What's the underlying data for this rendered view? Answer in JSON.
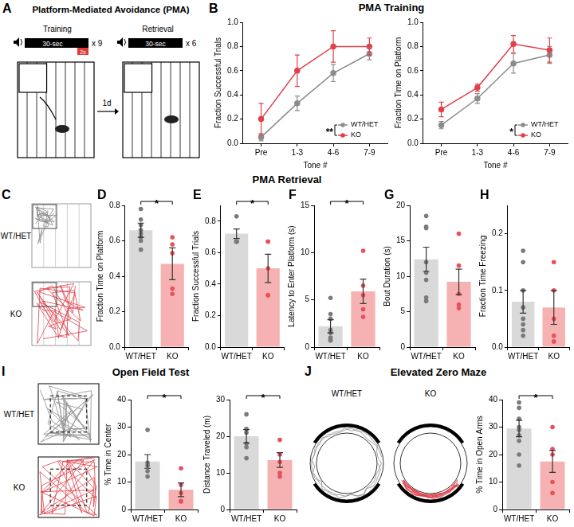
{
  "panel_A": {
    "letter": "A",
    "title": "Platform-Mediated Avoidance (PMA)",
    "training": {
      "label": "Training",
      "tone": "30-sec",
      "shock": "2s",
      "repeats": "x 9"
    },
    "retrieval": {
      "label": "Retrieval",
      "tone": "30-sec",
      "repeats": "x 6"
    },
    "interval": "1d"
  },
  "section_titles": {
    "training": "PMA Training",
    "retrieval": "PMA Retrieval",
    "open_field": "Open Field Test",
    "zero_maze": "Elevated Zero Maze"
  },
  "panel_C": {
    "letter": "C",
    "groups": [
      "WT/HET",
      "KO"
    ]
  },
  "panel_I_tracks": {
    "letter": "I",
    "groups": [
      "WT/HET",
      "KO"
    ]
  },
  "panel_J_tracks": {
    "letter": "J",
    "groups": [
      "WT/HET",
      "KO"
    ]
  },
  "chart_data": [
    {
      "panel": "B",
      "type": "line",
      "categories": [
        "Pre",
        "1-3",
        "4-6",
        "7-9"
      ],
      "x_label": "Tone #",
      "y_label": "Fraction Successful Trials",
      "ylim": [
        0,
        1
      ],
      "yticks": [
        {
          "value": 0,
          "label": "0.0"
        },
        0.2,
        0.4,
        0.6,
        0.8,
        {
          "value": 1,
          "label": "1.0"
        }
      ],
      "grid": false,
      "legend": "lower right",
      "significance": "**",
      "series": [
        {
          "name": "WT/HET",
          "color": "#8c8c8c",
          "marker": "circle",
          "values": [
            0.05,
            0.33,
            0.58,
            0.74
          ],
          "errors": [
            0.03,
            0.06,
            0.07,
            0.05
          ]
        },
        {
          "name": "KO",
          "color": "#e0404a",
          "marker": "circle",
          "values": [
            0.2,
            0.6,
            0.8,
            0.8
          ],
          "errors": [
            0.13,
            0.13,
            0.13,
            0.07
          ]
        }
      ]
    },
    {
      "type": "line",
      "categories": [
        "Pre",
        "1-3",
        "4-6",
        "7-9"
      ],
      "x_label": "Tone #",
      "y_label": "Fraction Time on Platform",
      "ylim": [
        0,
        1
      ],
      "yticks": [
        {
          "value": 0,
          "label": "0.0"
        },
        0.2,
        0.4,
        0.6,
        0.8,
        {
          "value": 1,
          "label": "1.0"
        }
      ],
      "grid": false,
      "legend": "lower right",
      "significance": "*",
      "series": [
        {
          "name": "WT/HET",
          "color": "#8c8c8c",
          "marker": "circle",
          "values": [
            0.15,
            0.37,
            0.66,
            0.73
          ],
          "errors": [
            0.03,
            0.04,
            0.08,
            0.07
          ]
        },
        {
          "name": "KO",
          "color": "#e0404a",
          "marker": "circle",
          "values": [
            0.28,
            0.46,
            0.82,
            0.77
          ],
          "errors": [
            0.06,
            0.03,
            0.07,
            0.1
          ]
        }
      ]
    },
    {
      "panel": "D",
      "type": "bar",
      "categories": [
        "WT/HET",
        "KO"
      ],
      "y_label": "Fraction Time on Platform",
      "ylim": [
        0,
        0.8
      ],
      "yticks": [
        {
          "value": 0,
          "label": "0.0"
        },
        0.2,
        0.4,
        0.6,
        0.8
      ],
      "grid": false,
      "colors": [
        "#d9d9d9",
        "#f6b2b2"
      ],
      "values": [
        0.66,
        0.47
      ],
      "errors": [
        0.04,
        0.09
      ],
      "significance": "*",
      "points": [
        [
          0.78,
          0.72,
          0.69,
          0.66,
          0.64,
          0.62,
          0.6,
          0.55
        ],
        [
          0.62,
          0.58,
          0.53,
          0.33,
          0.3
        ]
      ]
    },
    {
      "panel": "E",
      "type": "bar",
      "categories": [
        "WT/HET",
        "KO"
      ],
      "y_label": "Fraction Successful Trials",
      "ylim": [
        0,
        0.9
      ],
      "yticks": [
        {
          "value": 0,
          "label": "0.0"
        },
        0.2,
        0.4,
        0.6,
        0.8
      ],
      "grid": false,
      "colors": [
        "#d9d9d9",
        "#f6b2b2"
      ],
      "values": [
        0.72,
        0.5
      ],
      "errors": [
        0.03,
        0.09
      ],
      "significance": "*",
      "points": [
        [
          0.83,
          0.67,
          0.67,
          0.67,
          0.67,
          0.67,
          0.67,
          0.67
        ],
        [
          0.67,
          0.67,
          0.5,
          0.33,
          0.33
        ]
      ]
    },
    {
      "panel": "F",
      "type": "bar",
      "categories": [
        "WT/HET",
        "KO"
      ],
      "y_label": "Latency to Enter Platform (s)",
      "ylim": [
        0,
        15
      ],
      "yticks": [
        0,
        5,
        10,
        15
      ],
      "grid": false,
      "colors": [
        "#d9d9d9",
        "#f6b2b2"
      ],
      "values": [
        2.2,
        5.9
      ],
      "errors": [
        0.7,
        1.3
      ],
      "significance": "*",
      "points": [
        [
          5.2,
          3.5,
          3.0,
          1.8,
          1.5,
          1.0,
          0.8,
          0.7
        ],
        [
          10.2,
          6.5,
          5.5,
          4.0,
          3.2
        ]
      ]
    },
    {
      "panel": "G",
      "type": "bar",
      "categories": [
        "WT/HET",
        "KO"
      ],
      "y_label": "Bout Duration (s)",
      "ylim": [
        0,
        20
      ],
      "yticks": [
        0,
        5,
        10,
        15,
        20
      ],
      "grid": false,
      "colors": [
        "#d9d9d9",
        "#f6b2b2"
      ],
      "values": [
        12.4,
        9.2
      ],
      "errors": [
        1.7,
        1.8
      ],
      "points": [
        [
          18.5,
          17.0,
          16.8,
          12.0,
          10.5,
          9.5,
          7.0,
          6.5
        ],
        [
          16.0,
          11.5,
          7.5,
          6.0,
          5.5
        ]
      ]
    },
    {
      "panel": "H",
      "type": "bar",
      "categories": [
        "WT/HET",
        "KO"
      ],
      "y_label": "Fraction Time Freezing",
      "ylim": [
        0,
        0.25
      ],
      "yticks": [
        {
          "value": 0,
          "label": "0.0"
        },
        0.1,
        0.2
      ],
      "grid": false,
      "colors": [
        "#d9d9d9",
        "#f6b2b2"
      ],
      "values": [
        0.08,
        0.07
      ],
      "errors": [
        0.02,
        0.03
      ],
      "points": [
        [
          0.17,
          0.15,
          0.1,
          0.07,
          0.05,
          0.04,
          0.03,
          0.02
        ],
        [
          0.15,
          0.1,
          0.05,
          0.02,
          0.01
        ]
      ]
    },
    {
      "type": "bar",
      "categories": [
        "WT/HET",
        "KO"
      ],
      "y_label": "% Time in Center",
      "ylim": [
        0,
        40
      ],
      "yticks": [
        0,
        10,
        20,
        30,
        40
      ],
      "grid": false,
      "colors": [
        "#d9d9d9",
        "#f6b2b2"
      ],
      "values": [
        17.5,
        7.2
      ],
      "errors": [
        2.5,
        2.5
      ],
      "significance": "*",
      "points": [
        [
          29,
          17,
          16,
          14,
          12
        ],
        [
          15,
          9,
          6,
          3,
          3
        ]
      ]
    },
    {
      "type": "bar",
      "categories": [
        "WT/HET",
        "KO"
      ],
      "y_label": "Distance Traveled (m)",
      "ylim": [
        0,
        30
      ],
      "yticks": [
        0,
        10,
        20,
        30
      ],
      "grid": false,
      "colors": [
        "#d9d9d9",
        "#f6b2b2"
      ],
      "values": [
        20,
        13.5
      ],
      "errors": [
        1.8,
        2
      ],
      "significance": "*",
      "points": [
        [
          26,
          22,
          21,
          18,
          17,
          14
        ],
        [
          19,
          15,
          13,
          10,
          9
        ]
      ]
    },
    {
      "type": "bar",
      "categories": [
        "WT/HET",
        "KO"
      ],
      "y_label": "% Time in Open Arms",
      "ylim": [
        0,
        40
      ],
      "yticks": [
        0,
        10,
        20,
        30,
        40
      ],
      "grid": false,
      "colors": [
        "#d9d9d9",
        "#f6b2b2"
      ],
      "values": [
        29.5,
        17.5
      ],
      "errors": [
        3,
        4
      ],
      "significance": "*",
      "points": [
        [
          39,
          37,
          33,
          30,
          29,
          27,
          25,
          20,
          16
        ],
        [
          30,
          22,
          20,
          10,
          6
        ]
      ]
    }
  ]
}
